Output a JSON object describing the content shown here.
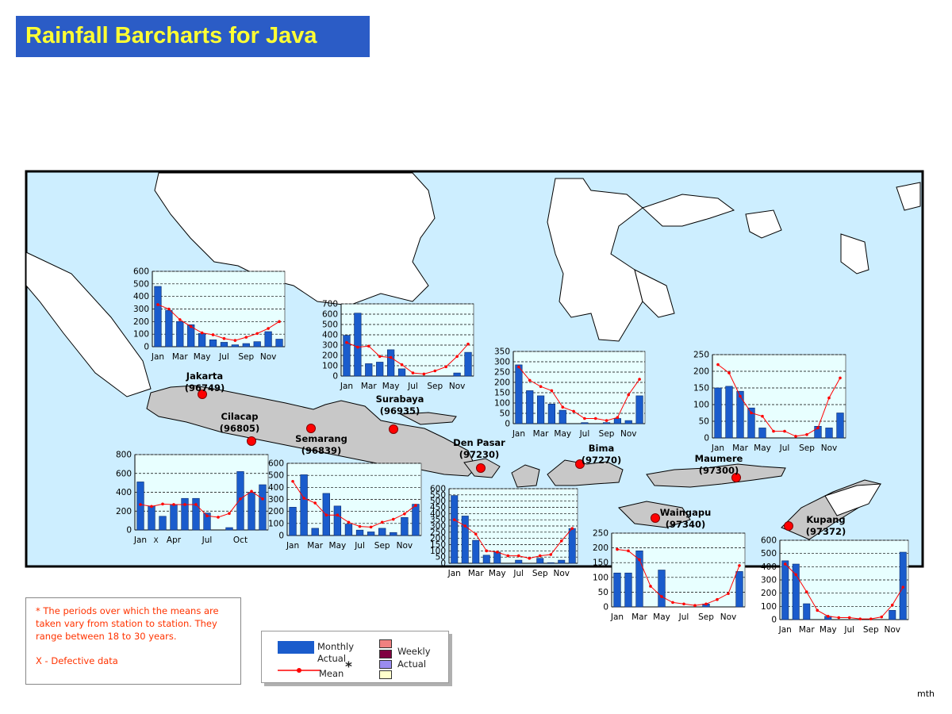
{
  "title": "Rainfall Barcharts for Java",
  "colors": {
    "title_bg": "#2b5cc6",
    "title_fg": "#ffff33",
    "sea": "#cdeeff",
    "land": "#c8c8c8",
    "bar": "#1a5ccc",
    "mean": "#ff0000",
    "plot_bg": "#e8ffff",
    "station": "#ff0000"
  },
  "stations": [
    {
      "name": "Jakarta",
      "id": "(96749)"
    },
    {
      "name": "Cilacap",
      "id": "(96805)"
    },
    {
      "name": "Semarang",
      "id": "(96839)"
    },
    {
      "name": "Surabaya",
      "id": "(96935)"
    },
    {
      "name": "Den Pasar",
      "id": "(97230)"
    },
    {
      "name": "Bima",
      "id": "(97270)"
    },
    {
      "name": "Maumere",
      "id": "(97300)"
    },
    {
      "name": "Waingapu",
      "id": "(97340)"
    },
    {
      "name": "Kupang",
      "id": "(97372)"
    }
  ],
  "chart_data": [
    {
      "type": "bar",
      "station": "Jakarta",
      "ylim": [
        0,
        600
      ],
      "yticks": [
        0,
        100,
        200,
        300,
        400,
        500,
        600
      ],
      "xtick_labels": [
        "Jan",
        "Mar",
        "May",
        "Jul",
        "Sep",
        "Nov"
      ],
      "xtick_positions": [
        0,
        2,
        4,
        6,
        8,
        10
      ],
      "series": [
        {
          "name": "Monthly Actual",
          "kind": "bar",
          "values": [
            480,
            290,
            200,
            175,
            105,
            55,
            35,
            15,
            25,
            40,
            120,
            60
          ]
        },
        {
          "name": "Mean",
          "kind": "line",
          "values": [
            335,
            300,
            215,
            160,
            110,
            95,
            65,
            50,
            75,
            105,
            145,
            200
          ]
        }
      ]
    },
    {
      "type": "bar",
      "station": "Surabaya",
      "ylim": [
        0,
        700
      ],
      "yticks": [
        0,
        100,
        200,
        300,
        400,
        500,
        600,
        700
      ],
      "xtick_labels": [
        "Jan",
        "Mar",
        "May",
        "Jul",
        "Sep",
        "Nov"
      ],
      "xtick_positions": [
        0,
        2,
        4,
        6,
        8,
        10
      ],
      "series": [
        {
          "name": "Monthly Actual",
          "kind": "bar",
          "values": [
            395,
            610,
            120,
            135,
            255,
            70,
            0,
            0,
            0,
            0,
            30,
            230
          ]
        },
        {
          "name": "Mean",
          "kind": "line",
          "values": [
            325,
            280,
            290,
            190,
            180,
            110,
            30,
            20,
            50,
            90,
            190,
            310
          ]
        }
      ]
    },
    {
      "type": "bar",
      "station": "Bima",
      "ylim": [
        0,
        350
      ],
      "yticks": [
        0,
        50,
        100,
        150,
        200,
        250,
        300,
        350
      ],
      "xtick_labels": [
        "Jan",
        "Mar",
        "May",
        "Jul",
        "Sep",
        "Nov"
      ],
      "xtick_positions": [
        0,
        2,
        4,
        6,
        8,
        10
      ],
      "series": [
        {
          "name": "Monthly Actual",
          "kind": "bar",
          "values": [
            285,
            160,
            135,
            95,
            65,
            0,
            5,
            0,
            5,
            25,
            15,
            135
          ]
        },
        {
          "name": "Mean",
          "kind": "line",
          "values": [
            275,
            210,
            180,
            160,
            80,
            60,
            25,
            25,
            15,
            30,
            140,
            215
          ]
        }
      ]
    },
    {
      "type": "bar",
      "station": "Maumere",
      "ylim": [
        0,
        250
      ],
      "yticks": [
        0,
        50,
        100,
        150,
        200,
        250
      ],
      "xtick_labels": [
        "Jan",
        "Mar",
        "May",
        "Jul",
        "Sep",
        "Nov"
      ],
      "xtick_positions": [
        0,
        2,
        4,
        6,
        8,
        10
      ],
      "series": [
        {
          "name": "Monthly Actual",
          "kind": "bar",
          "values": [
            150,
            155,
            140,
            90,
            30,
            0,
            0,
            0,
            0,
            35,
            30,
            75
          ]
        },
        {
          "name": "Mean",
          "kind": "line",
          "values": [
            220,
            195,
            125,
            75,
            65,
            20,
            20,
            5,
            10,
            30,
            120,
            180
          ]
        }
      ]
    },
    {
      "type": "bar",
      "station": "Cilacap",
      "ylim": [
        0,
        800
      ],
      "yticks": [
        0,
        200,
        400,
        600,
        800
      ],
      "xtick_labels": [
        "Jan",
        "Apr",
        "Jul",
        "Oct"
      ],
      "xtick_positions": [
        0,
        3,
        6,
        9
      ],
      "annotations": [
        "X"
      ],
      "series": [
        {
          "name": "Monthly Actual",
          "kind": "bar",
          "values": [
            510,
            255,
            145,
            270,
            335,
            335,
            180,
            0,
            25,
            620,
            400,
            480
          ]
        },
        {
          "name": "Mean",
          "kind": "line",
          "values": [
            270,
            250,
            275,
            270,
            270,
            270,
            150,
            135,
            175,
            330,
            410,
            330
          ]
        }
      ]
    },
    {
      "type": "bar",
      "station": "Semarang",
      "ylim": [
        0,
        600
      ],
      "yticks": [
        0,
        100,
        200,
        300,
        400,
        500,
        600
      ],
      "xtick_labels": [
        "Jan",
        "Mar",
        "May",
        "Jul",
        "Sep",
        "Nov"
      ],
      "xtick_positions": [
        0,
        2,
        4,
        6,
        8,
        10
      ],
      "series": [
        {
          "name": "Monthly Actual",
          "kind": "bar",
          "values": [
            235,
            505,
            60,
            350,
            245,
            95,
            45,
            30,
            60,
            25,
            150,
            260
          ]
        },
        {
          "name": "Mean",
          "kind": "line",
          "values": [
            450,
            310,
            270,
            170,
            170,
            110,
            75,
            70,
            110,
            135,
            180,
            250
          ]
        }
      ]
    },
    {
      "type": "bar",
      "station": "Den Pasar",
      "ylim": [
        0,
        600
      ],
      "yticks": [
        0,
        50,
        100,
        150,
        200,
        250,
        300,
        350,
        400,
        450,
        500,
        550,
        600
      ],
      "xtick_labels": [
        "Jan",
        "Mar",
        "May",
        "Jul",
        "Sep",
        "Nov"
      ],
      "xtick_positions": [
        0,
        2,
        4,
        6,
        8,
        10
      ],
      "series": [
        {
          "name": "Monthly Actual",
          "kind": "bar",
          "values": [
            545,
            380,
            185,
            65,
            90,
            0,
            25,
            0,
            40,
            5,
            25,
            280
          ]
        },
        {
          "name": "Mean",
          "kind": "line",
          "values": [
            350,
            300,
            235,
            100,
            90,
            60,
            60,
            40,
            60,
            70,
            180,
            280
          ]
        }
      ]
    },
    {
      "type": "bar",
      "station": "Waingapu",
      "ylim": [
        0,
        250
      ],
      "yticks": [
        0,
        50,
        100,
        150,
        200,
        250
      ],
      "xtick_labels": [
        "Jan",
        "Mar",
        "May",
        "Jul",
        "Sep",
        "Nov"
      ],
      "xtick_positions": [
        0,
        2,
        4,
        6,
        8,
        10
      ],
      "series": [
        {
          "name": "Monthly Actual",
          "kind": "bar",
          "values": [
            115,
            115,
            190,
            0,
            125,
            0,
            0,
            0,
            10,
            0,
            0,
            120
          ]
        },
        {
          "name": "Mean",
          "kind": "line",
          "values": [
            195,
            190,
            160,
            70,
            35,
            15,
            10,
            5,
            10,
            25,
            45,
            140
          ]
        }
      ]
    },
    {
      "type": "bar",
      "station": "Kupang",
      "ylim": [
        0,
        600
      ],
      "yticks": [
        0,
        100,
        200,
        300,
        400,
        500,
        600
      ],
      "xtick_labels": [
        "Jan",
        "Mar",
        "May",
        "Jul",
        "Sep",
        "Nov"
      ],
      "xtick_positions": [
        0,
        2,
        4,
        6,
        8,
        10
      ],
      "series": [
        {
          "name": "Monthly Actual",
          "kind": "bar",
          "values": [
            445,
            420,
            120,
            0,
            25,
            0,
            0,
            0,
            0,
            0,
            70,
            510
          ]
        },
        {
          "name": "Mean",
          "kind": "line",
          "values": [
            420,
            340,
            210,
            70,
            25,
            15,
            15,
            5,
            5,
            20,
            110,
            245
          ]
        }
      ]
    }
  ],
  "notes": {
    "means": "* The periods over which the means are taken vary from station to station. They range between 18 to 30 years.",
    "defective": "X - Defective data"
  },
  "legend": {
    "monthly": "Monthly",
    "actual": "Actual",
    "mean": "Mean",
    "asterisk": "*",
    "weekly": "Weekly",
    "weekly_actual": "Actual"
  },
  "footer": "mth"
}
